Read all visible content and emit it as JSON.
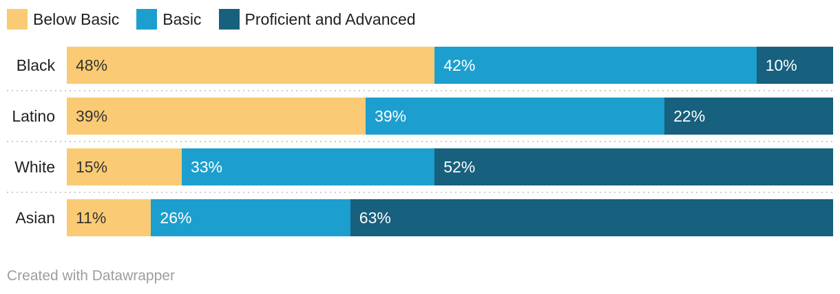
{
  "footer": "Created with Datawrapper",
  "chart_data": {
    "type": "bar",
    "subtype": "horizontal-stacked",
    "title": "",
    "xlabel": "",
    "ylabel": "",
    "xlim": [
      0,
      100
    ],
    "value_suffix": "%",
    "grid": false,
    "legend_position": "top",
    "categories": [
      "Black",
      "Latino",
      "White",
      "Asian"
    ],
    "series": [
      {
        "name": "Below Basic",
        "color": "#FACB74",
        "label_color": "#333333",
        "values": [
          48,
          39,
          15,
          11
        ]
      },
      {
        "name": "Basic",
        "color": "#1C9FCE",
        "label_color": "#ffffff",
        "values": [
          42,
          39,
          33,
          26
        ]
      },
      {
        "name": "Proficient and Advanced",
        "color": "#17607E",
        "label_color": "#ffffff",
        "values": [
          10,
          22,
          52,
          63
        ]
      }
    ]
  }
}
